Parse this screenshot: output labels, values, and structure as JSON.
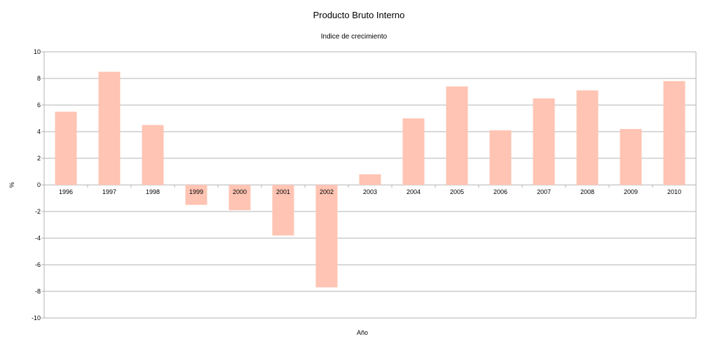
{
  "chart_data": {
    "type": "bar",
    "title": "Producto Bruto Interno",
    "subtitle": "Indice de crecimiento",
    "xlabel": "Año",
    "ylabel": "%",
    "categories": [
      "1996",
      "1997",
      "1998",
      "1999",
      "2000",
      "2001",
      "2002",
      "2003",
      "2004",
      "2005",
      "2006",
      "2007",
      "2008",
      "2009",
      "2010"
    ],
    "values": [
      5.5,
      8.5,
      4.5,
      -1.5,
      -1.9,
      -3.8,
      -7.7,
      0.8,
      5.0,
      7.4,
      4.1,
      6.5,
      7.1,
      4.2,
      7.8
    ],
    "ylim": [
      -10,
      10
    ],
    "yticks": [
      10,
      8,
      6,
      4,
      2,
      0,
      -2,
      -4,
      -6,
      -8,
      -10
    ],
    "grid": true,
    "bar_color": "#ffc4b3",
    "grid_color": "#b3b3b3"
  }
}
